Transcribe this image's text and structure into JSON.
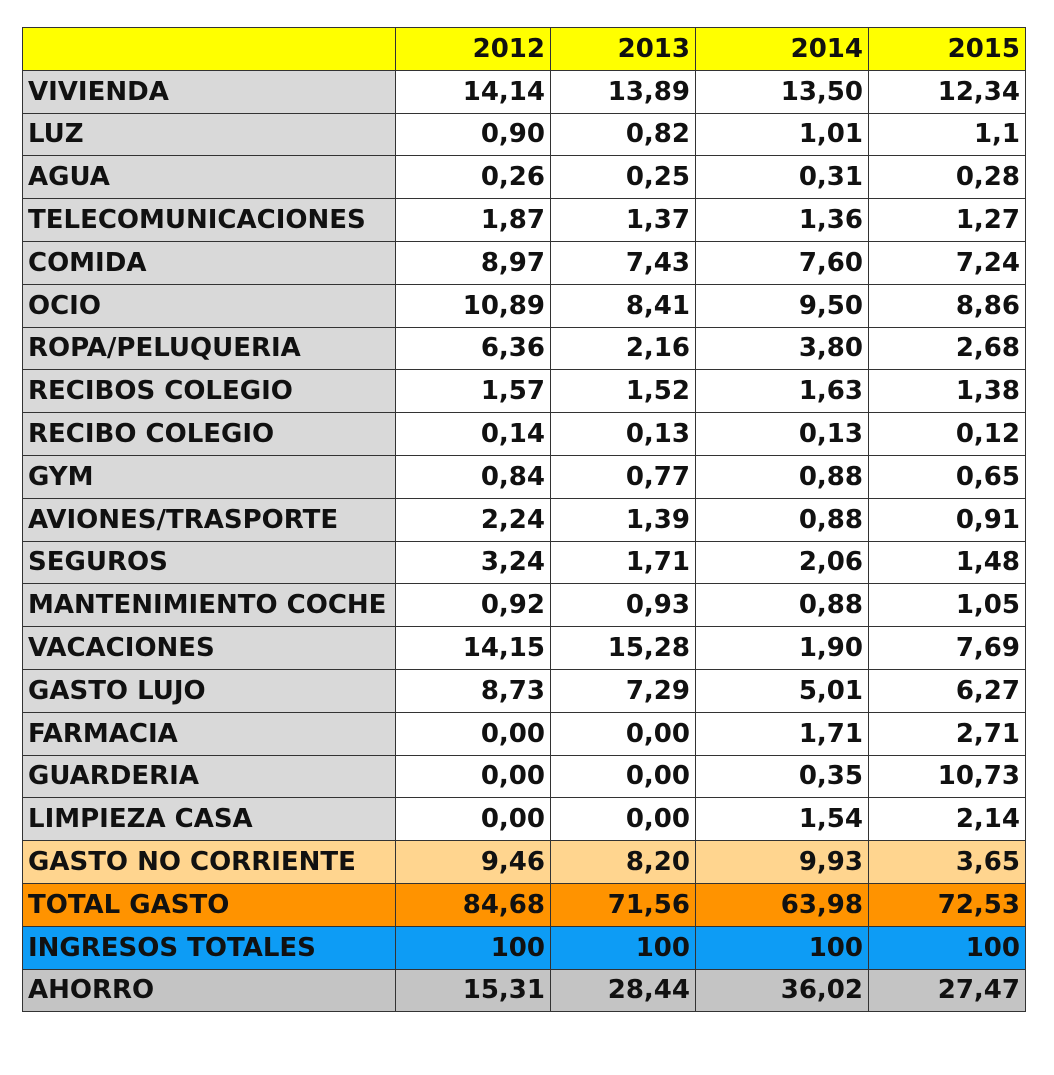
{
  "chart_data": {
    "type": "table",
    "columns": [
      "",
      "2012",
      "2013",
      "2014",
      "2015"
    ],
    "rows": [
      {
        "label": "VIVIENDA",
        "values": [
          "14,14",
          "13,89",
          "13,50",
          "12,34"
        ],
        "style": "item"
      },
      {
        "label": "LUZ",
        "values": [
          "0,90",
          "0,82",
          "1,01",
          "1,1"
        ],
        "style": "item"
      },
      {
        "label": "AGUA",
        "values": [
          "0,26",
          "0,25",
          "0,31",
          "0,28"
        ],
        "style": "item"
      },
      {
        "label": "TELECOMUNICACIONES",
        "values": [
          "1,87",
          "1,37",
          "1,36",
          "1,27"
        ],
        "style": "item"
      },
      {
        "label": "COMIDA",
        "values": [
          "8,97",
          "7,43",
          "7,60",
          "7,24"
        ],
        "style": "item"
      },
      {
        "label": "OCIO",
        "values": [
          "10,89",
          "8,41",
          "9,50",
          "8,86"
        ],
        "style": "item"
      },
      {
        "label": "ROPA/PELUQUERIA",
        "values": [
          "6,36",
          "2,16",
          "3,80",
          "2,68"
        ],
        "style": "item"
      },
      {
        "label": "RECIBOS COLEGIO",
        "values": [
          "1,57",
          "1,52",
          "1,63",
          "1,38"
        ],
        "style": "item"
      },
      {
        "label": "RECIBO COLEGIO",
        "values": [
          "0,14",
          "0,13",
          "0,13",
          "0,12"
        ],
        "style": "item"
      },
      {
        "label": "GYM",
        "values": [
          "0,84",
          "0,77",
          "0,88",
          "0,65"
        ],
        "style": "item"
      },
      {
        "label": "AVIONES/TRASPORTE",
        "values": [
          "2,24",
          "1,39",
          "0,88",
          "0,91"
        ],
        "style": "item"
      },
      {
        "label": "SEGUROS",
        "values": [
          "3,24",
          "1,71",
          "2,06",
          "1,48"
        ],
        "style": "item"
      },
      {
        "label": "MANTENIMIENTO COCHE",
        "values": [
          "0,92",
          "0,93",
          "0,88",
          "1,05"
        ],
        "style": "item"
      },
      {
        "label": "VACACIONES",
        "values": [
          "14,15",
          "15,28",
          "1,90",
          "7,69"
        ],
        "style": "item"
      },
      {
        "label": "GASTO LUJO",
        "values": [
          "8,73",
          "7,29",
          "5,01",
          "6,27"
        ],
        "style": "item"
      },
      {
        "label": "FARMACIA",
        "values": [
          "0,00",
          "0,00",
          "1,71",
          "2,71"
        ],
        "style": "item"
      },
      {
        "label": "GUARDERIA",
        "values": [
          "0,00",
          "0,00",
          "0,35",
          "10,73"
        ],
        "style": "item"
      },
      {
        "label": "LIMPIEZA CASA",
        "values": [
          "0,00",
          "0,00",
          "1,54",
          "2,14"
        ],
        "style": "item"
      },
      {
        "label": "GASTO NO CORRIENTE",
        "values": [
          "9,46",
          "8,20",
          "9,93",
          "3,65"
        ],
        "style": "noncurrent"
      },
      {
        "label": "TOTAL GASTO",
        "values": [
          "84,68",
          "71,56",
          "63,98",
          "72,53"
        ],
        "style": "total"
      },
      {
        "label": "INGRESOS TOTALES",
        "values": [
          "100",
          "100",
          "100",
          "100"
        ],
        "style": "income"
      },
      {
        "label": "AHORRO",
        "values": [
          "15,31",
          "28,44",
          "36,02",
          "27,47"
        ],
        "style": "savings"
      }
    ]
  },
  "colors": {
    "header": "#ffff00",
    "item_label": "#d9d9d9",
    "item_value": "#ffffff",
    "noncurrent": "#ffd58f",
    "total": "#ff9300",
    "income": "#0d9cf5",
    "savings": "#c4c4c4"
  }
}
